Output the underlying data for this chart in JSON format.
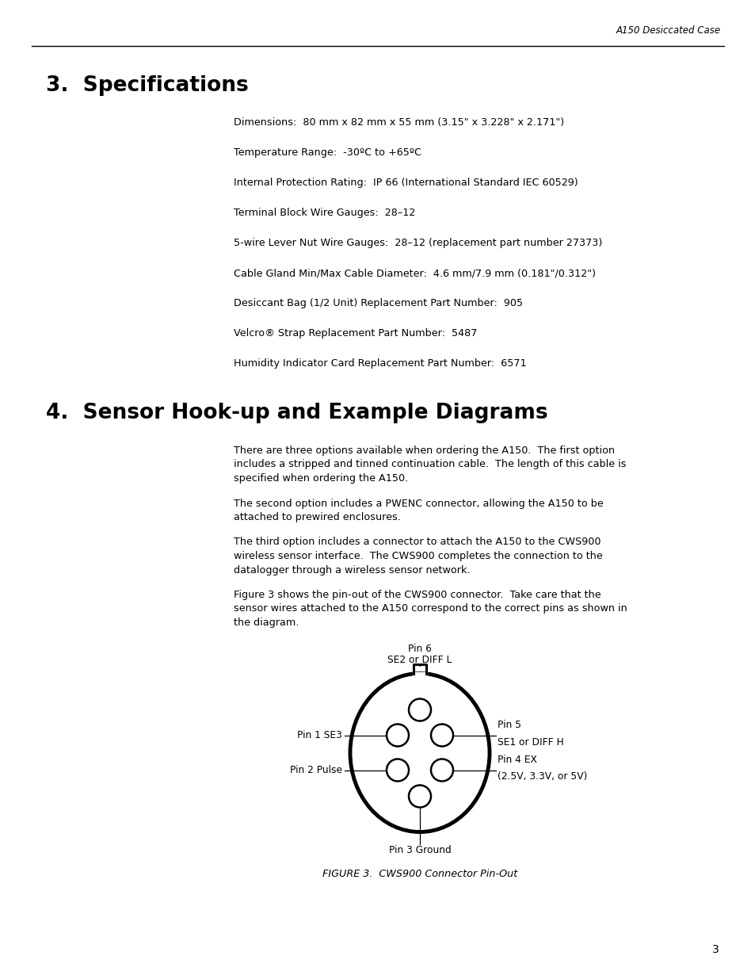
{
  "header_text": "A150 Desiccated Case",
  "section3_title": "3.  Specifications",
  "specs": [
    "Dimensions:  80 mm x 82 mm x 55 mm (3.15\" x 3.228\" x 2.171\")",
    "Temperature Range:  -30ºC to +65ºC",
    "Internal Protection Rating:  IP 66 (International Standard IEC 60529)",
    "Terminal Block Wire Gauges:  28–12",
    "5-wire Lever Nut Wire Gauges:  28–12 (replacement part number 27373)",
    "Cable Gland Min/Max Cable Diameter:  4.6 mm/7.9 mm (0.181\"/0.312\")",
    "Desiccant Bag (1/2 Unit) Replacement Part Number:  905",
    "Velcro® Strap Replacement Part Number:  5487",
    "Humidity Indicator Card Replacement Part Number:  6571"
  ],
  "section4_title": "4.  Sensor Hook-up and Example Diagrams",
  "para1_lines": [
    "There are three options available when ordering the A150.  The first option",
    "includes a stripped and tinned continuation cable.  The length of this cable is",
    "specified when ordering the A150."
  ],
  "para2_lines": [
    "The second option includes a PWENC connector, allowing the A150 to be",
    "attached to prewired enclosures."
  ],
  "para3_lines": [
    "The third option includes a connector to attach the A150 to the CWS900",
    "wireless sensor interface.  The CWS900 completes the connection to the",
    "datalogger through a wireless sensor network."
  ],
  "para4_lines": [
    "Figure 3 shows the pin-out of the CWS900 connector.  Take care that the",
    "sensor wires attached to the A150 correspond to the correct pins as shown in",
    "the diagram."
  ],
  "figure_caption": "FIGURE 3.  CWS900 Connector Pin-Out",
  "page_number": "3",
  "bg_color": "#ffffff",
  "text_color": "#000000"
}
